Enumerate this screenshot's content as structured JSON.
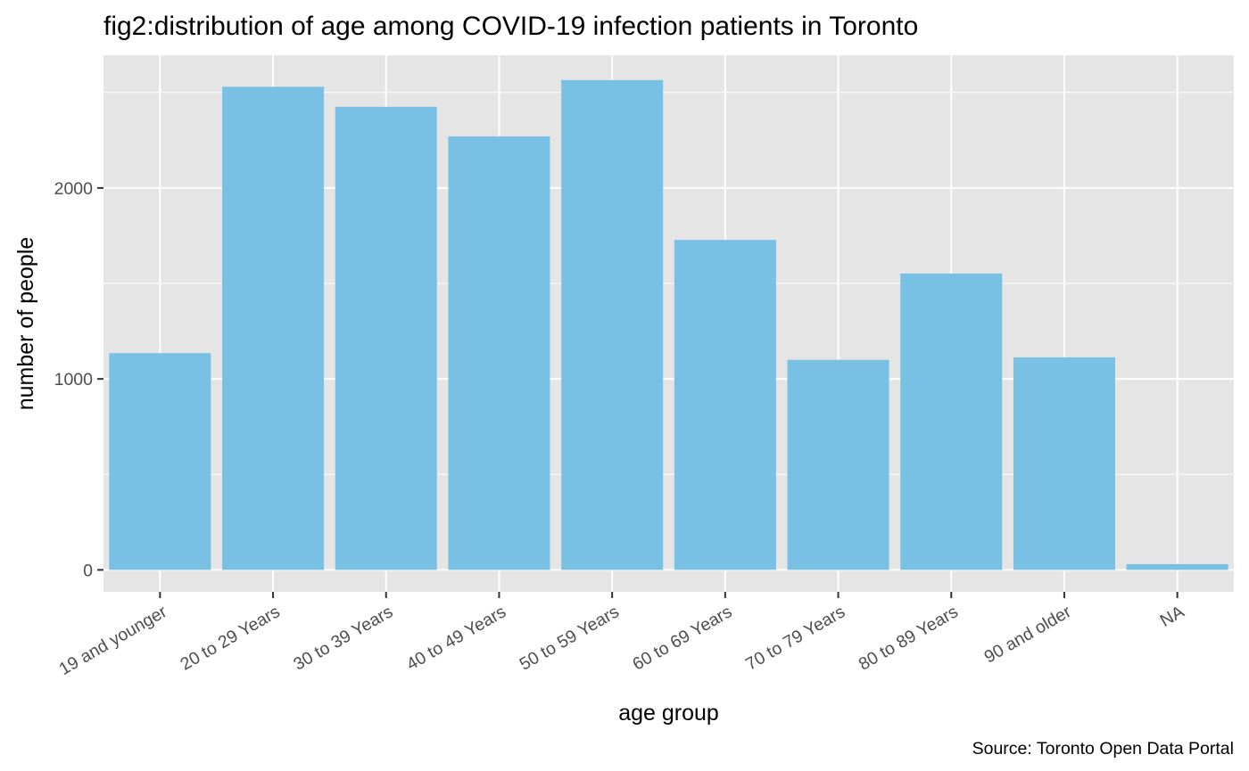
{
  "chart_data": {
    "type": "bar",
    "title": "fig2:distribution of age among COVID-19 infection patients in Toronto",
    "xlabel": "age group",
    "ylabel": "number of people",
    "caption": "Source: Toronto Open Data Portal",
    "categories": [
      "19 and younger",
      "20 to 29 Years",
      "30 to 39 Years",
      "40 to 49 Years",
      "50 to 59 Years",
      "60 to 69 Years",
      "70 to 79 Years",
      "80 to 89 Years",
      "90 and older",
      "NA"
    ],
    "values": [
      1135,
      2530,
      2425,
      2270,
      2565,
      1728,
      1100,
      1552,
      1113,
      30
    ],
    "ylim": [
      -115,
      2695
    ],
    "yticks": [
      0,
      1000,
      2000
    ],
    "yticks_minor": [
      500,
      1500,
      2500
    ],
    "ytick_labels": [
      "0",
      "1000",
      "2000"
    ],
    "grid": true,
    "legend": "none",
    "bar_color": "#78c1e4",
    "panel_background": "#e5e5e5",
    "grid_color": "#ffffff"
  }
}
